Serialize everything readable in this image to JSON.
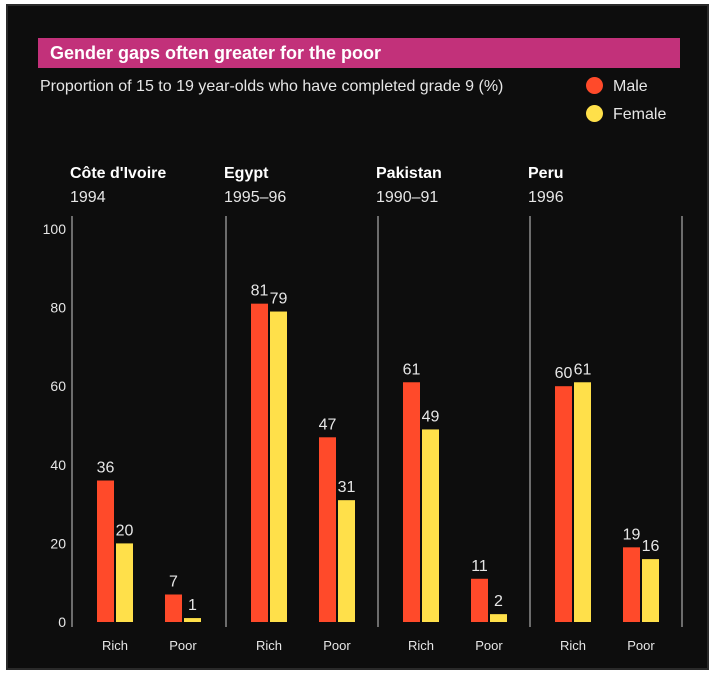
{
  "title": "Gender gaps often greater for the poor",
  "subtitle": "Proportion of 15 to 19 year-olds who have completed grade 9 (%)",
  "legend": [
    {
      "label": "Male",
      "color": "#ff4a2a"
    },
    {
      "label": "Female",
      "color": "#ffe04a"
    }
  ],
  "chart_data": {
    "type": "bar",
    "ylim": [
      0,
      100
    ],
    "yticks": [
      0,
      20,
      40,
      60,
      80,
      100
    ],
    "grid": false,
    "legend_position": "top-right",
    "groups": [
      "Rich",
      "Poor"
    ],
    "panels": [
      {
        "country": "Côte d'Ivoire",
        "year": "1994",
        "male": [
          36,
          7
        ],
        "female": [
          20,
          1
        ]
      },
      {
        "country": "Egypt",
        "year": "1995–96",
        "male": [
          81,
          47
        ],
        "female": [
          79,
          31
        ]
      },
      {
        "country": "Pakistan",
        "year": "1990–91",
        "male": [
          61,
          11
        ],
        "female": [
          49,
          2
        ]
      },
      {
        "country": "Peru",
        "year": "1996",
        "male": [
          60,
          19
        ],
        "female": [
          61,
          16
        ]
      }
    ]
  }
}
